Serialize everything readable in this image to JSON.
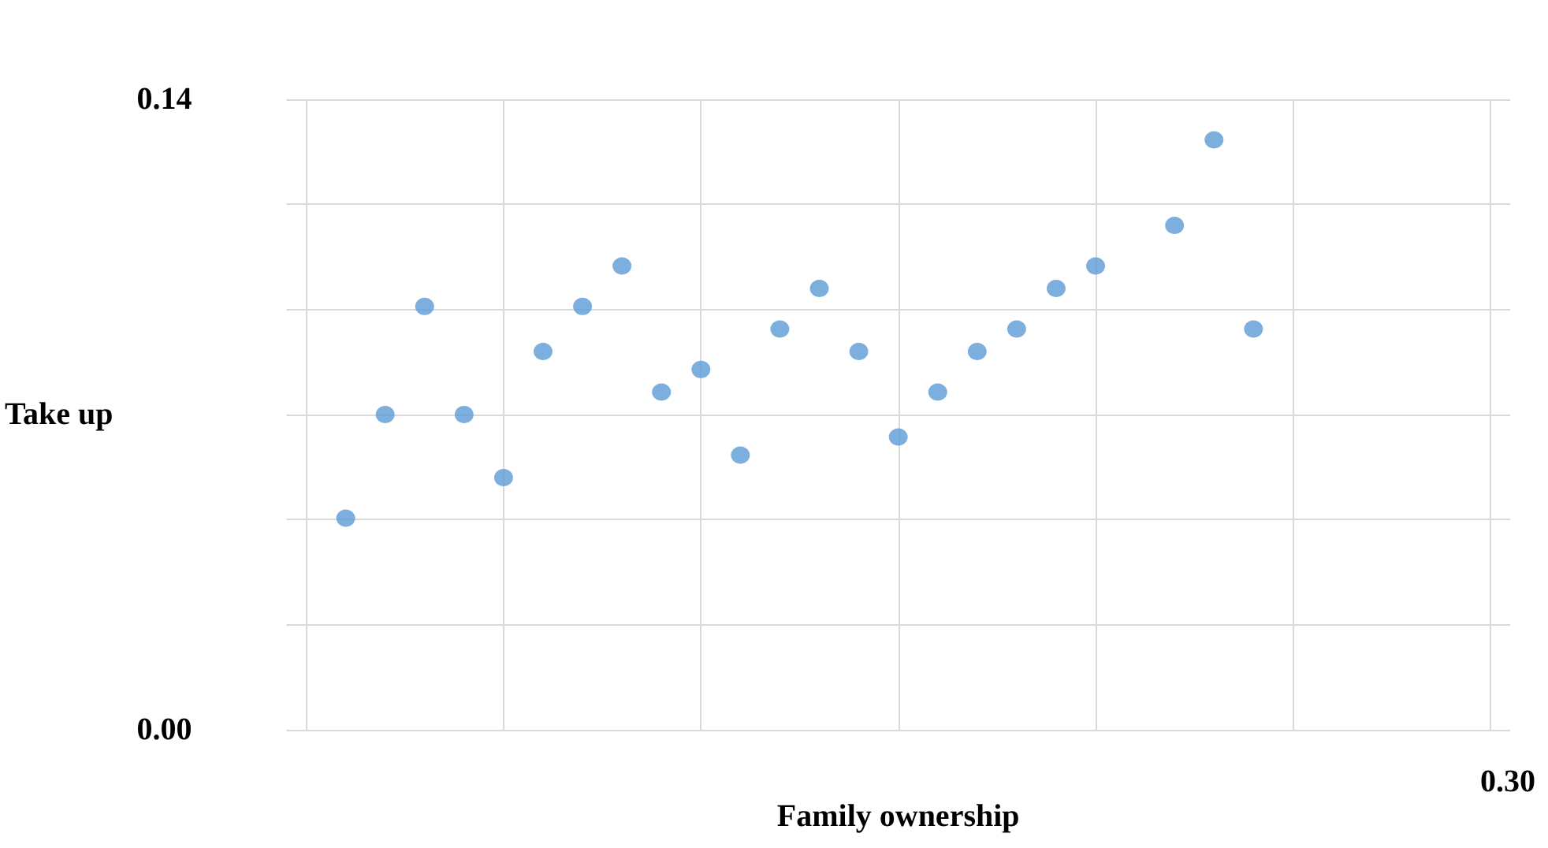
{
  "chart_data": {
    "type": "scatter",
    "xlabel": "Family ownership",
    "ylabel": "Take up",
    "categories": [
      null,
      null,
      null,
      null,
      null,
      null,
      null,
      null,
      null,
      null,
      null,
      null,
      null,
      null,
      null,
      null,
      null,
      null,
      null,
      null,
      null,
      null,
      null,
      null,
      null,
      null,
      null,
      null,
      null,
      null,
      null
    ],
    "series": [
      {
        "color": "#5b9bd5",
        "values": [
          null,
          0.047,
          0.07,
          0.094,
          0.07,
          0.056,
          0.084,
          0.094,
          0.103,
          0.075,
          0.08,
          0.061,
          0.089,
          0.098,
          0.084,
          0.065,
          0.075,
          0.084,
          0.089,
          0.098,
          0.103,
          null,
          0.112,
          0.131,
          0.089,
          null,
          null,
          null,
          null,
          null,
          null
        ]
      }
    ],
    "ylim": [
      0,
      0.14
    ],
    "yticks": [
      {
        "value": 0,
        "label": "0.00"
      },
      {
        "value": 0.0233,
        "label": null
      },
      {
        "value": 0.0467,
        "label": null
      },
      {
        "value": 0.07,
        "label": null
      },
      {
        "value": 0.0933,
        "label": null
      },
      {
        "value": 0.1167,
        "label": null
      },
      {
        "value": 0.14,
        "label": "0.14"
      }
    ],
    "annotations": [
      "0.30"
    ],
    "grid": true,
    "marker": "circle"
  }
}
